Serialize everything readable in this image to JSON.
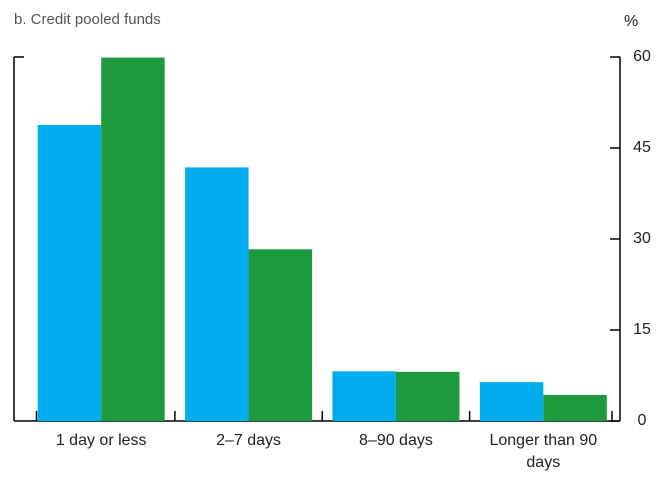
{
  "chart_data": {
    "type": "bar",
    "title": "b. Credit pooled funds",
    "y_label": "%",
    "categories": [
      "1 day or less",
      "2–7 days",
      "8–90 days",
      "Longer than 90 days"
    ],
    "series": [
      {
        "color": "#00aeef",
        "values": [
          48.8,
          41.8,
          8.2,
          6.4
        ]
      },
      {
        "color": "#1e9a3e",
        "values": [
          59.9,
          28.3,
          8.1,
          4.3
        ]
      }
    ],
    "ylim": [
      0,
      60
    ],
    "yticks": [
      0,
      15,
      30,
      45,
      60
    ]
  }
}
